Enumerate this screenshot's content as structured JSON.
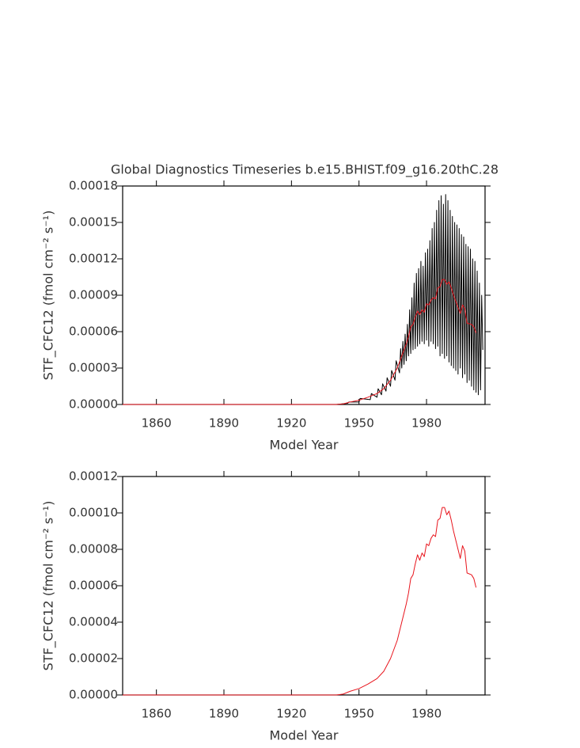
{
  "chart_data": [
    {
      "type": "line",
      "title": "Global Diagnostics Timeseries b.e15.BHIST.f09_g16.20thC.28",
      "xlabel": "Model Year",
      "ylabel": "STF_CFC12 (fmol cm⁻² s⁻¹)",
      "xlim": [
        1845,
        2006
      ],
      "xticks": [
        1860,
        1890,
        1920,
        1950,
        1980
      ],
      "ylim": [
        0,
        0.00018
      ],
      "yticks": [
        {
          "value": 0,
          "label": "0.00000"
        },
        {
          "value": 3e-05,
          "label": "0.00003"
        },
        {
          "value": 6e-05,
          "label": "0.00006"
        },
        {
          "value": 9e-05,
          "label": "0.00009"
        },
        {
          "value": 0.00012,
          "label": "0.00012"
        },
        {
          "value": 0.00015,
          "label": "0.00015"
        },
        {
          "value": 0.00018,
          "label": "0.00018"
        }
      ],
      "series": [
        {
          "color": "#000000",
          "x": [
            1845,
            1940,
            1945,
            1945.5,
            1950,
            1950.5,
            1955,
            1955.5,
            1958,
            1958.5,
            1960,
            1960.5,
            1962,
            1962.5,
            1964,
            1964.5,
            1966,
            1966.5,
            1968,
            1968.5,
            1969,
            1969.5,
            1970,
            1970.5,
            1971,
            1971.5,
            1972,
            1972.5,
            1973,
            1973.5,
            1974,
            1974.5,
            1975,
            1975.5,
            1976,
            1976.5,
            1977,
            1977.5,
            1978,
            1978.5,
            1979,
            1979.5,
            1980,
            1980.5,
            1981,
            1981.5,
            1982,
            1982.5,
            1983,
            1983.5,
            1984,
            1984.5,
            1985,
            1985.5,
            1986,
            1986.5,
            1987,
            1987.5,
            1988,
            1988.5,
            1989,
            1989.5,
            1990,
            1990.5,
            1991,
            1991.5,
            1992,
            1992.5,
            1993,
            1993.5,
            1994,
            1994.5,
            1995,
            1995.5,
            1996,
            1996.5,
            1997,
            1997.5,
            1998,
            1998.5,
            1999,
            1999.5,
            2000,
            2000.5,
            2001,
            2001.5,
            2002,
            2002.5,
            2003,
            2003.5,
            2004,
            2004.5,
            2005
          ],
          "values": [
            0,
            0,
            1e-06,
            2e-06,
            2e-06,
            5e-06,
            4e-06,
            9e-06,
            6e-06,
            1.3e-05,
            8e-06,
            1.7e-05,
            1.1e-05,
            2.2e-05,
            1.5e-05,
            2.8e-05,
            2e-05,
            3.6e-05,
            2.6e-05,
            4.6e-05,
            3e-05,
            5.2e-05,
            3.3e-05,
            5.8e-05,
            3.6e-05,
            6.6e-05,
            4e-05,
            7.8e-05,
            4.2e-05,
            8.8e-05,
            4.5e-05,
            0.0001,
            4.6e-05,
            0.000108,
            4.8e-05,
            0.000112,
            5e-05,
            0.000118,
            5.2e-05,
            0.000114,
            5e-05,
            0.000125,
            5.3e-05,
            0.000128,
            4.8e-05,
            0.000135,
            5.2e-05,
            0.000145,
            5e-05,
            0.00015,
            4.6e-05,
            0.00016,
            4.8e-05,
            0.000168,
            4e-05,
            0.000172,
            4.2e-05,
            0.000165,
            3.8e-05,
            0.000173,
            4e-05,
            0.000168,
            3.5e-05,
            0.00016,
            3.2e-05,
            0.000155,
            3e-05,
            0.00015,
            2.8e-05,
            0.000148,
            2.5e-05,
            0.000145,
            3e-05,
            0.00014,
            2.2e-05,
            0.000138,
            2.5e-05,
            0.000132,
            1.8e-05,
            0.00013,
            2e-05,
            0.000128,
            1.5e-05,
            0.00012,
            1.2e-05,
            0.000118,
            1e-05,
            0.00011,
            8e-06,
            0.0001,
            1.2e-05,
            9e-05,
            4.5e-05
          ]
        },
        {
          "color": "#e8141c",
          "x": [
            1845,
            1940,
            1943,
            1946,
            1950,
            1954,
            1958,
            1961,
            1964,
            1967,
            1969,
            1971,
            1972,
            1973,
            1974,
            1975,
            1976,
            1977,
            1978,
            1979,
            1980,
            1981,
            1982,
            1983,
            1984,
            1985,
            1986,
            1987,
            1988,
            1989,
            1990,
            1991,
            1992,
            1993,
            1994,
            1995,
            1996,
            1997,
            1998,
            2000,
            2001,
            2002
          ],
          "values": [
            0,
            0,
            5e-07,
            2e-06,
            3.5e-06,
            6e-06,
            9e-06,
            1.3e-05,
            2e-05,
            3e-05,
            4e-05,
            5e-05,
            5.6e-05,
            6.4e-05,
            6.6e-05,
            7.2e-05,
            7.7e-05,
            7.4e-05,
            7.8e-05,
            7.6e-05,
            8.3e-05,
            8.2e-05,
            8.6e-05,
            8.8e-05,
            8.7e-05,
            9.6e-05,
            9.7e-05,
            0.000103,
            0.000103,
            9.9e-05,
            0.000101,
            9.6e-05,
            9e-05,
            8.5e-05,
            8e-05,
            7.5e-05,
            8.2e-05,
            7.9e-05,
            6.7e-05,
            6.6e-05,
            6.4e-05,
            5.9e-05
          ]
        }
      ]
    },
    {
      "type": "line",
      "xlabel": "Model Year",
      "ylabel": "STF_CFC12 (fmol cm⁻² s⁻¹)",
      "xlim": [
        1845,
        2006
      ],
      "xticks": [
        1860,
        1890,
        1920,
        1950,
        1980
      ],
      "ylim": [
        0,
        0.00012
      ],
      "yticks": [
        {
          "value": 0,
          "label": "0.00000"
        },
        {
          "value": 2e-05,
          "label": "0.00002"
        },
        {
          "value": 4e-05,
          "label": "0.00004"
        },
        {
          "value": 6e-05,
          "label": "0.00006"
        },
        {
          "value": 8e-05,
          "label": "0.00008"
        },
        {
          "value": 0.0001,
          "label": "0.00010"
        },
        {
          "value": 0.00012,
          "label": "0.00012"
        }
      ],
      "series": [
        {
          "color": "#e8141c",
          "x": [
            1845,
            1940,
            1943,
            1946,
            1950,
            1954,
            1958,
            1961,
            1964,
            1967,
            1969,
            1971,
            1972,
            1973,
            1974,
            1975,
            1976,
            1977,
            1978,
            1979,
            1980,
            1981,
            1982,
            1983,
            1984,
            1985,
            1986,
            1987,
            1988,
            1989,
            1990,
            1991,
            1992,
            1993,
            1994,
            1995,
            1996,
            1997,
            1998,
            2000,
            2001,
            2002
          ],
          "values": [
            0,
            0,
            5e-07,
            2e-06,
            3.5e-06,
            6e-06,
            9e-06,
            1.3e-05,
            2e-05,
            3e-05,
            4e-05,
            5e-05,
            5.6e-05,
            6.4e-05,
            6.6e-05,
            7.2e-05,
            7.7e-05,
            7.4e-05,
            7.8e-05,
            7.6e-05,
            8.3e-05,
            8.2e-05,
            8.6e-05,
            8.8e-05,
            8.7e-05,
            9.6e-05,
            9.7e-05,
            0.000103,
            0.000103,
            9.9e-05,
            0.000101,
            9.6e-05,
            9e-05,
            8.5e-05,
            8e-05,
            7.5e-05,
            8.2e-05,
            7.9e-05,
            6.7e-05,
            6.6e-05,
            6.4e-05,
            5.9e-05
          ]
        }
      ]
    }
  ]
}
